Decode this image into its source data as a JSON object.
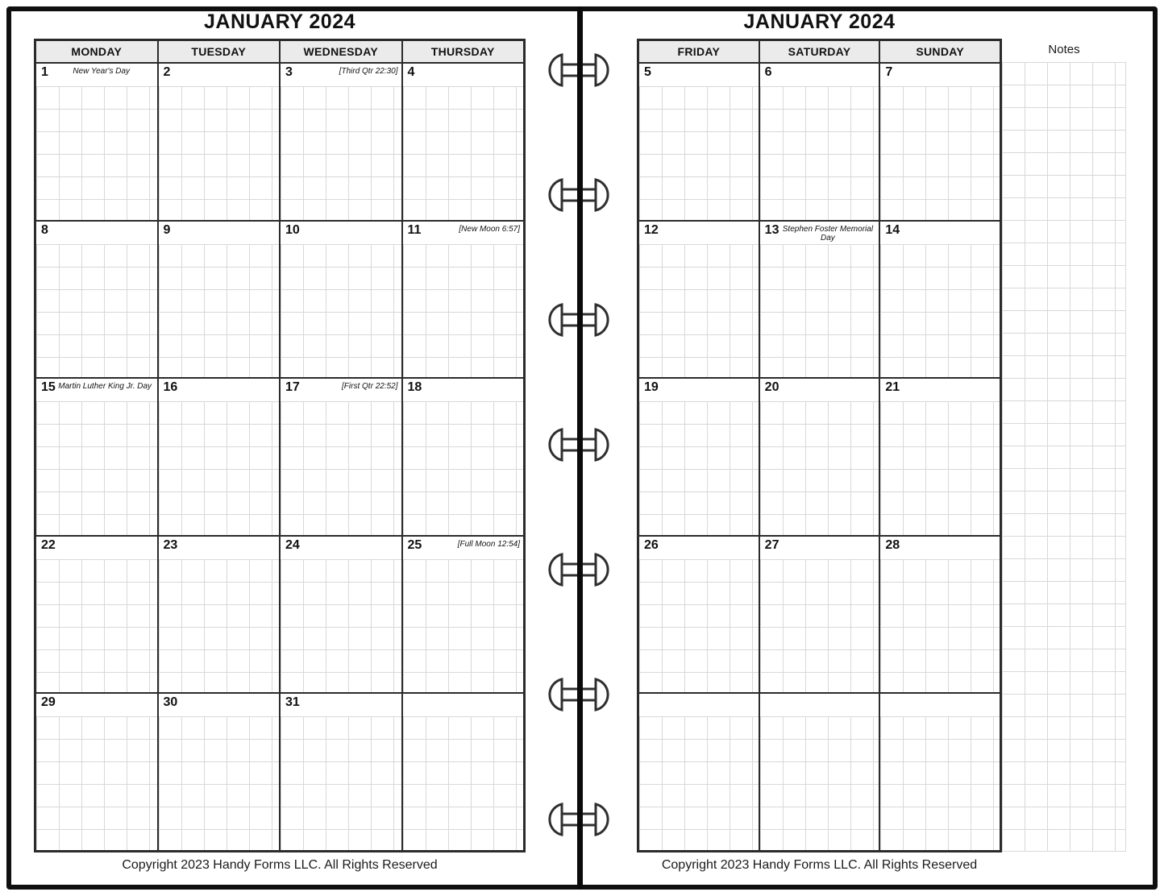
{
  "left_page": {
    "title": "JANUARY 2024",
    "day_headers": [
      "MONDAY",
      "TUESDAY",
      "WEDNESDAY",
      "THURSDAY"
    ],
    "weeks": [
      [
        {
          "num": "1",
          "note": "New Year's Day"
        },
        {
          "num": "2",
          "note": ""
        },
        {
          "num": "3",
          "note": "[Third Qtr 22:30]"
        },
        {
          "num": "4",
          "note": ""
        }
      ],
      [
        {
          "num": "8",
          "note": ""
        },
        {
          "num": "9",
          "note": ""
        },
        {
          "num": "10",
          "note": ""
        },
        {
          "num": "11",
          "note": "[New Moon 6:57]"
        }
      ],
      [
        {
          "num": "15",
          "note": "Martin Luther King Jr. Day"
        },
        {
          "num": "16",
          "note": ""
        },
        {
          "num": "17",
          "note": "[First Qtr 22:52]"
        },
        {
          "num": "18",
          "note": ""
        }
      ],
      [
        {
          "num": "22",
          "note": ""
        },
        {
          "num": "23",
          "note": ""
        },
        {
          "num": "24",
          "note": ""
        },
        {
          "num": "25",
          "note": "[Full Moon 12:54]"
        }
      ],
      [
        {
          "num": "29",
          "note": ""
        },
        {
          "num": "30",
          "note": ""
        },
        {
          "num": "31",
          "note": ""
        },
        {
          "num": "",
          "note": ""
        }
      ]
    ],
    "footer": "Copyright 2023 Handy Forms LLC. All Rights Reserved"
  },
  "right_page": {
    "title": "JANUARY 2024",
    "day_headers": [
      "FRIDAY",
      "SATURDAY",
      "SUNDAY"
    ],
    "notes_label": "Notes",
    "weeks": [
      [
        {
          "num": "5",
          "note": ""
        },
        {
          "num": "6",
          "note": ""
        },
        {
          "num": "7",
          "note": ""
        }
      ],
      [
        {
          "num": "12",
          "note": ""
        },
        {
          "num": "13",
          "note": "Stephen Foster Memorial Day"
        },
        {
          "num": "14",
          "note": ""
        }
      ],
      [
        {
          "num": "19",
          "note": ""
        },
        {
          "num": "20",
          "note": ""
        },
        {
          "num": "21",
          "note": ""
        }
      ],
      [
        {
          "num": "26",
          "note": ""
        },
        {
          "num": "27",
          "note": ""
        },
        {
          "num": "28",
          "note": ""
        }
      ],
      [
        {
          "num": "",
          "note": ""
        },
        {
          "num": "",
          "note": ""
        },
        {
          "num": "",
          "note": ""
        }
      ]
    ],
    "footer": "Copyright 2023 Handy Forms LLC. All Rights Reserved"
  },
  "binder": {
    "ring_count": 7
  },
  "colors": {
    "frame": "#0f0f0f",
    "spine": "#0b0b0b",
    "table_border": "#2b2b2b",
    "header_bg": "#ebebeb",
    "grid_line": "#d8d8d8",
    "ring_stroke": "#2f2f2f"
  }
}
